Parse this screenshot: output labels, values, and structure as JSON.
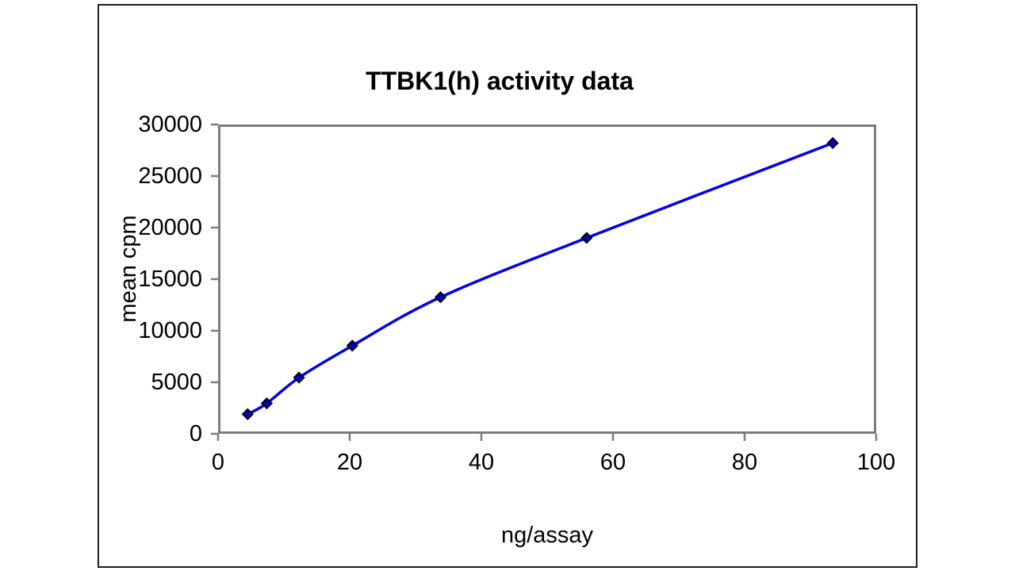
{
  "chart_data": {
    "type": "line",
    "title": "TTBK1(h) activity data",
    "xlabel": "ng/assay",
    "ylabel": "mean cpm",
    "xlim": [
      0,
      100
    ],
    "ylim": [
      0,
      30000
    ],
    "x_ticks": [
      0,
      20,
      40,
      60,
      80,
      100
    ],
    "y_ticks": [
      0,
      5000,
      10000,
      15000,
      20000,
      25000,
      30000
    ],
    "grid": false,
    "legend_position": "none",
    "smooth_line": true,
    "series": [
      {
        "marker": "diamond",
        "line_color": "#0000f2",
        "marker_fill": "#0000c8",
        "marker_stroke": "#000000",
        "x": [
          4.5,
          7.4,
          12.3,
          20.4,
          33.8,
          56,
          93.4
        ],
        "y": [
          1900,
          2950,
          5450,
          8550,
          13250,
          19000,
          28200
        ]
      }
    ]
  },
  "colors": {
    "background": "#ffffff",
    "axis_gray": "#7d7d7d",
    "frame_black": "#1f1f1f",
    "text": "#000000"
  }
}
